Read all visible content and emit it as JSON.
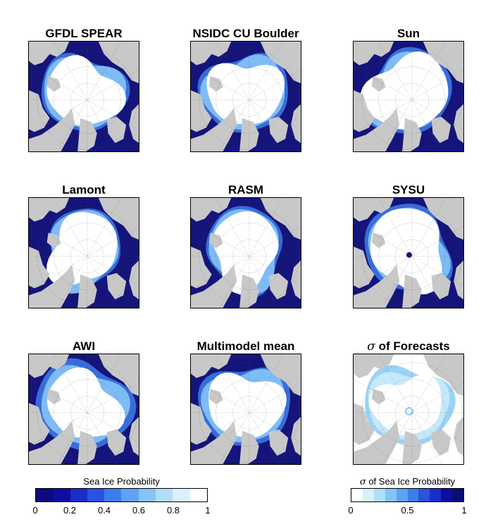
{
  "panels": [
    {
      "id": "gfdl",
      "title": "GFDL SPEAR",
      "kind": "prob"
    },
    {
      "id": "nsidc",
      "title": "NSIDC CU Boulder",
      "kind": "prob"
    },
    {
      "id": "sun",
      "title": "Sun",
      "kind": "prob"
    },
    {
      "id": "lamont",
      "title": "Lamont",
      "kind": "prob"
    },
    {
      "id": "rasm",
      "title": "RASM",
      "kind": "prob"
    },
    {
      "id": "sysu",
      "title": "SYSU",
      "kind": "prob"
    },
    {
      "id": "awi",
      "title": "AWI",
      "kind": "prob"
    },
    {
      "id": "mmm",
      "title": "Multimodel mean",
      "kind": "prob"
    },
    {
      "id": "sigma",
      "title_symbol": "σ",
      "title": " of Forecasts",
      "kind": "sigma"
    }
  ],
  "colorbar_probability": {
    "label": "Sea Ice Probability",
    "ticks": [
      "0",
      "0.2",
      "0.4",
      "0.6",
      "0.8",
      "1"
    ],
    "colors": [
      "#0b0b7a",
      "#0e0ea0",
      "#1a2ec8",
      "#2b52e0",
      "#3e7cec",
      "#5fa2f4",
      "#86c4f8",
      "#b0dffa",
      "#d8f1fc",
      "#ffffff"
    ]
  },
  "colorbar_sigma": {
    "label_symbol": "σ",
    "label": " of Sea Ice Probability",
    "ticks": [
      "0",
      "0.5",
      "1"
    ],
    "colors": [
      "#ffffff",
      "#d8f1fc",
      "#b0dffa",
      "#86c4f8",
      "#5fa2f4",
      "#3e7cec",
      "#2b52e0",
      "#1a2ec8",
      "#0e0ea0",
      "#0b0b7a"
    ]
  },
  "colors": {
    "ocean": "#14147a",
    "land": "#c8c8c8",
    "ice": "#ffffff"
  }
}
